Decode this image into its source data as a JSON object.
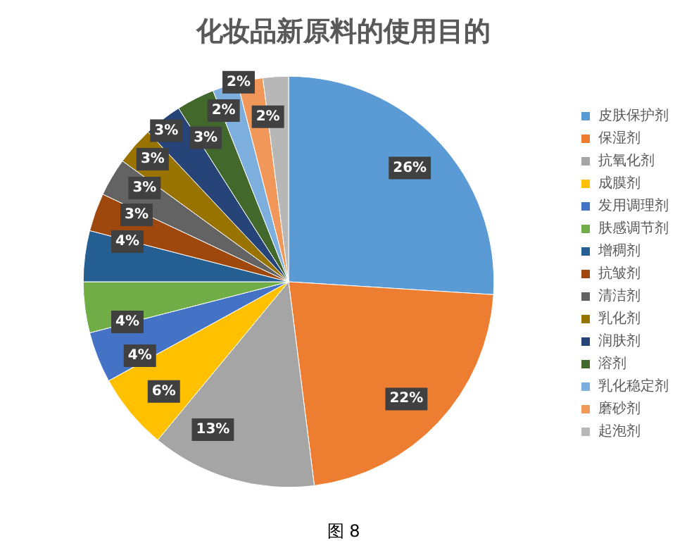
{
  "chart_data": {
    "type": "pie",
    "title": "化妆品新原料的使用目的",
    "annotations": [
      "图 8"
    ],
    "categories": [
      "皮肤保护剂",
      "保湿剂",
      "抗氧化剂",
      "成膜剂",
      "发用调理剂",
      "肤感调节剂",
      "增稠剂",
      "抗皱剂",
      "清洁剂",
      "乳化剂",
      "润肤剂",
      "溶剂",
      "乳化稳定剂",
      "磨砂剂",
      "起泡剂"
    ],
    "values": [
      26,
      22,
      13,
      6,
      4,
      4,
      4,
      3,
      3,
      3,
      3,
      3,
      2,
      2,
      2
    ],
    "colors": [
      "#5b9bd5",
      "#ed7d31",
      "#a5a5a5",
      "#ffc000",
      "#4472c4",
      "#70ad47",
      "#255e91",
      "#9e480e",
      "#636363",
      "#997300",
      "#264478",
      "#43682b",
      "#7cafdd",
      "#f1975a",
      "#b7b7b7"
    ],
    "value_labels": [
      "26%",
      "22%",
      "13%",
      "6%",
      "4%",
      "4%",
      "4%",
      "3%",
      "3%",
      "3%",
      "3%",
      "3%",
      "2%",
      "2%",
      "2%"
    ],
    "legend": "right"
  }
}
